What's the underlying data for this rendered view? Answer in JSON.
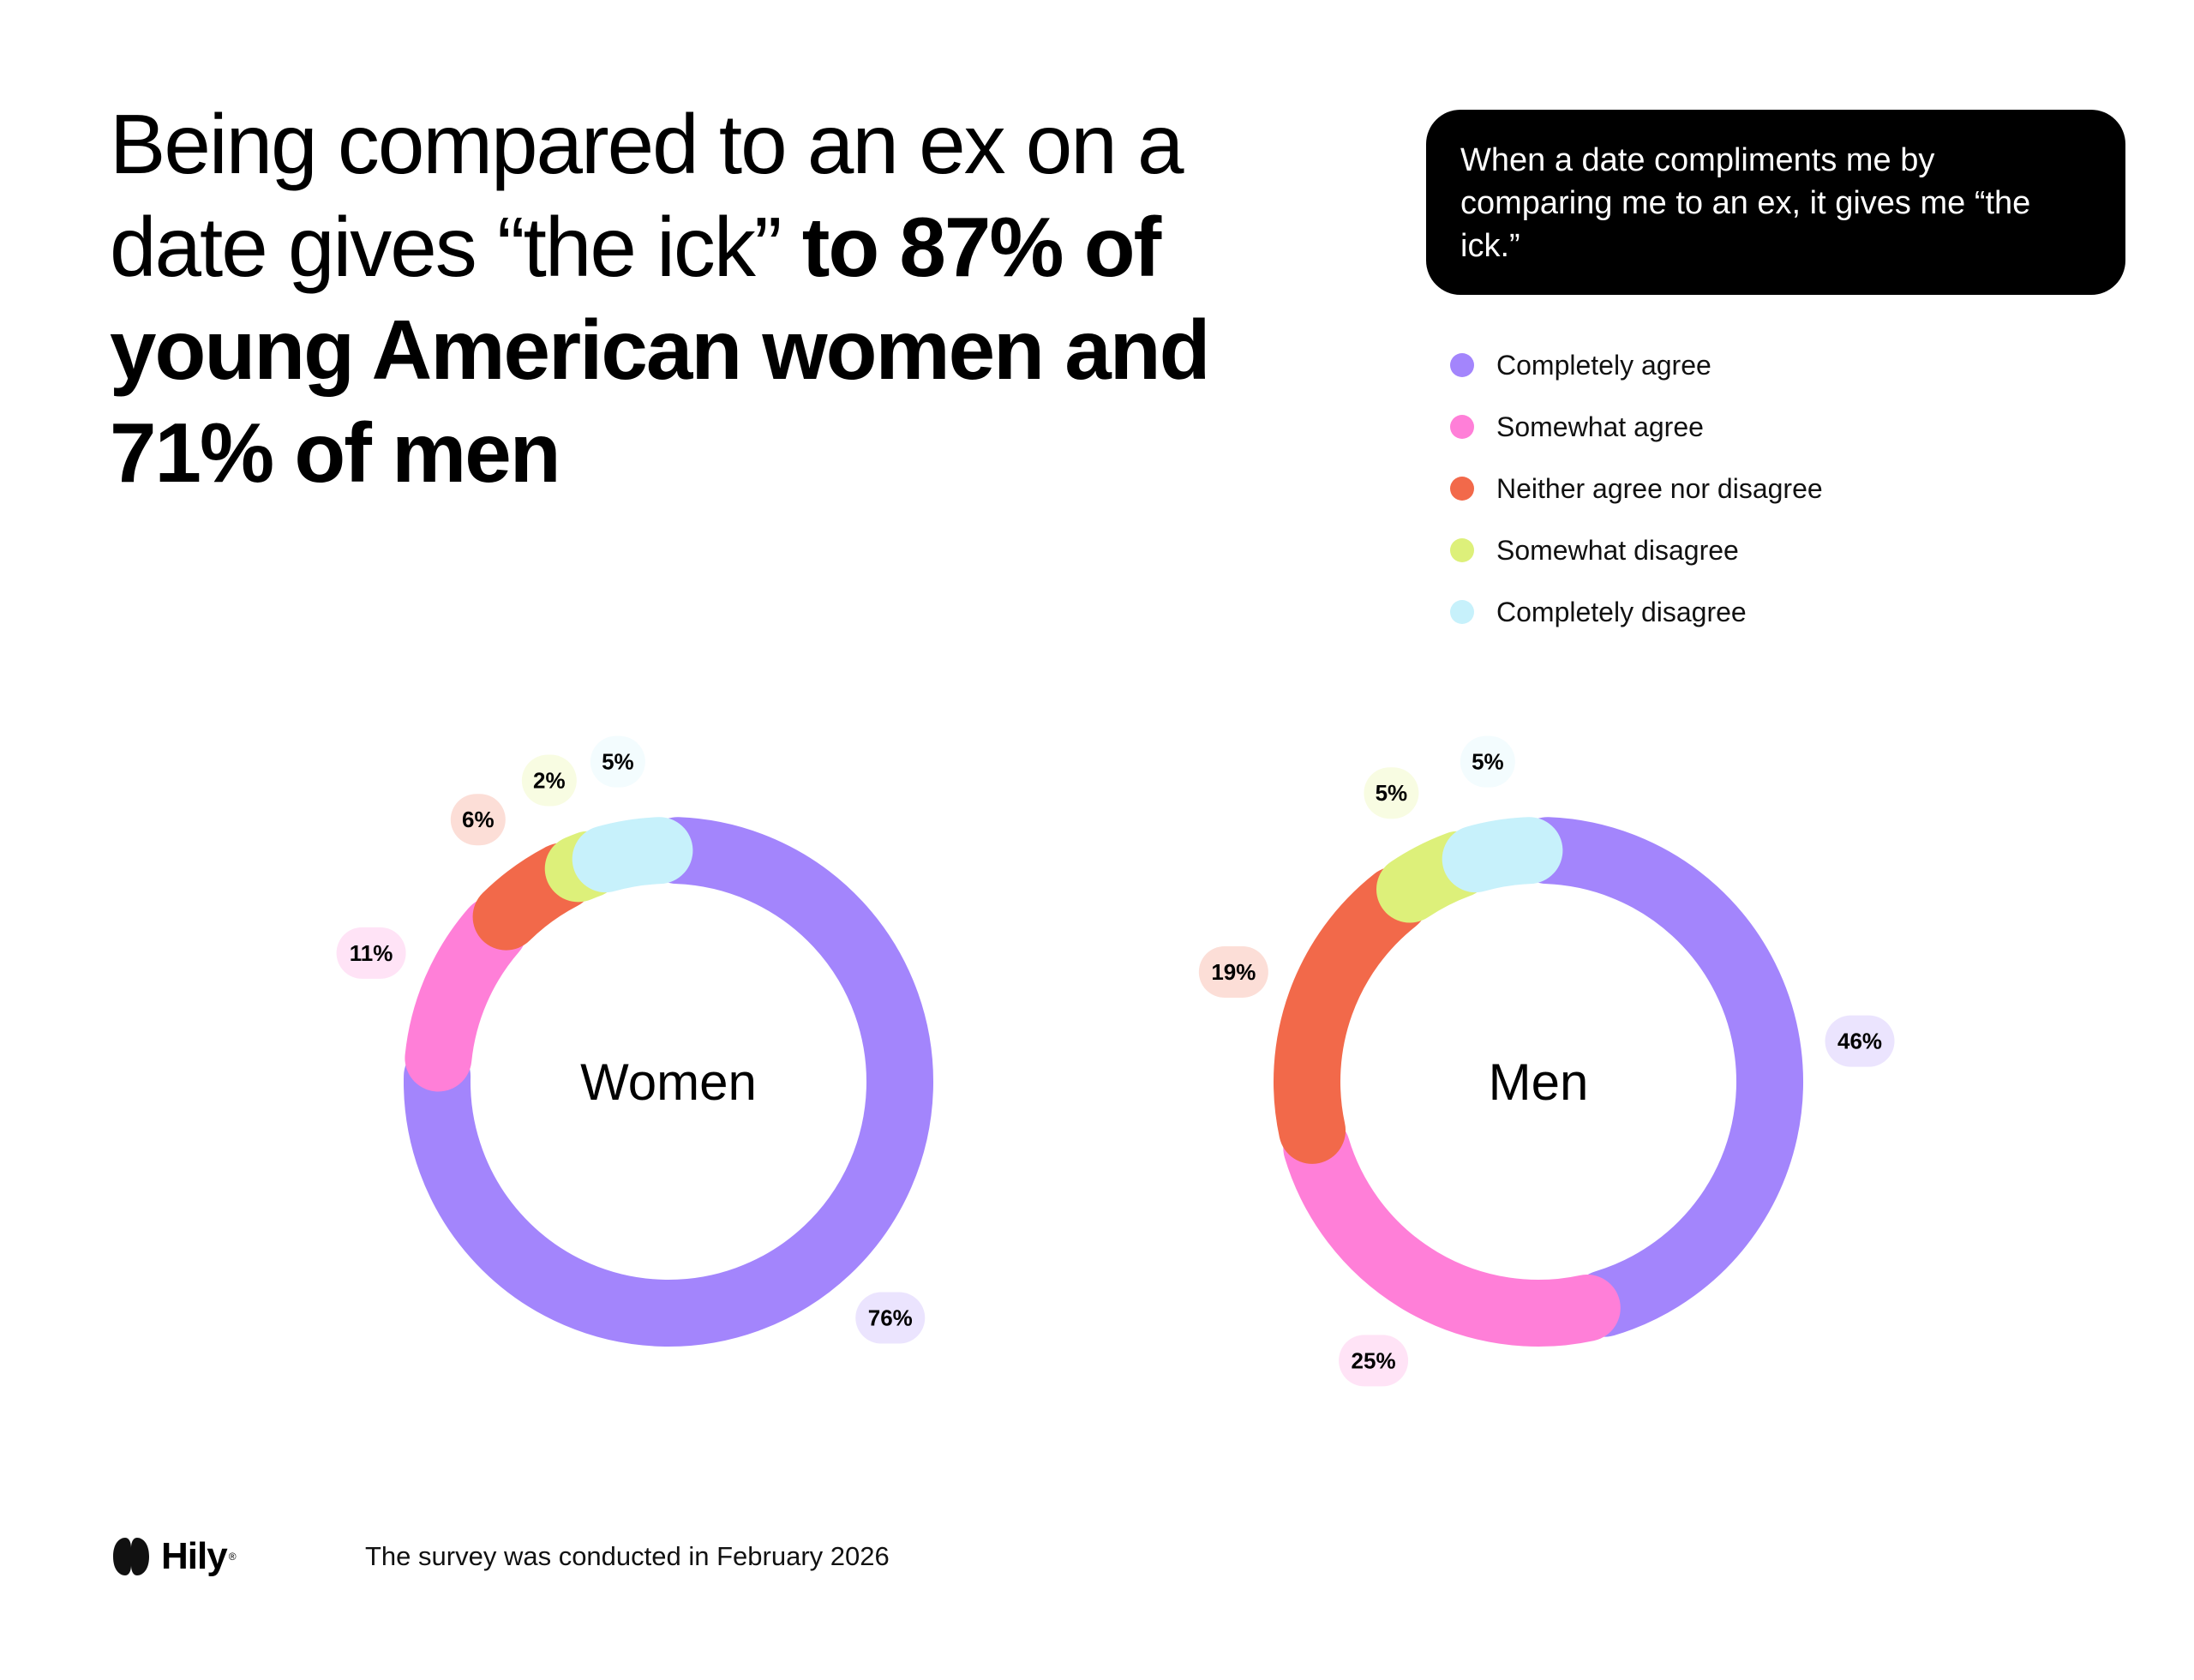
{
  "headline": {
    "regular": "Being compared to an ex on a date gives “the ick” ",
    "bold": "to 87% of young American women and 71% of men"
  },
  "question": "When a date compliments me by comparing me to an ex, it gives me “the ick.”",
  "legend": [
    {
      "label": "Completely agree",
      "color": "#A385FC"
    },
    {
      "label": "Somewhat agree",
      "color": "#FF7FD8"
    },
    {
      "label": "Neither agree nor disagree",
      "color": "#F2694A"
    },
    {
      "label": "Somewhat disagree",
      "color": "#DDF07A"
    },
    {
      "label": "Completely disagree",
      "color": "#C7F1FB"
    }
  ],
  "footer": {
    "brand": "Hily",
    "reg": "®",
    "note": "The survey was conducted in February 2026"
  },
  "chart_data": [
    {
      "type": "donut",
      "title": "Women",
      "categories": [
        "Completely agree",
        "Somewhat agree",
        "Neither agree nor disagree",
        "Somewhat disagree",
        "Completely disagree"
      ],
      "values": [
        76,
        11,
        6,
        2,
        5
      ],
      "labels": [
        "76%",
        "11%",
        "6%",
        "2%",
        "5%"
      ]
    },
    {
      "type": "donut",
      "title": "Men",
      "categories": [
        "Completely agree",
        "Somewhat agree",
        "Neither agree nor disagree",
        "Somewhat disagree",
        "Completely disagree"
      ],
      "values": [
        46,
        25,
        19,
        5,
        5
      ],
      "labels": [
        "46%",
        "25%",
        "19%",
        "5%",
        "5%"
      ]
    }
  ]
}
